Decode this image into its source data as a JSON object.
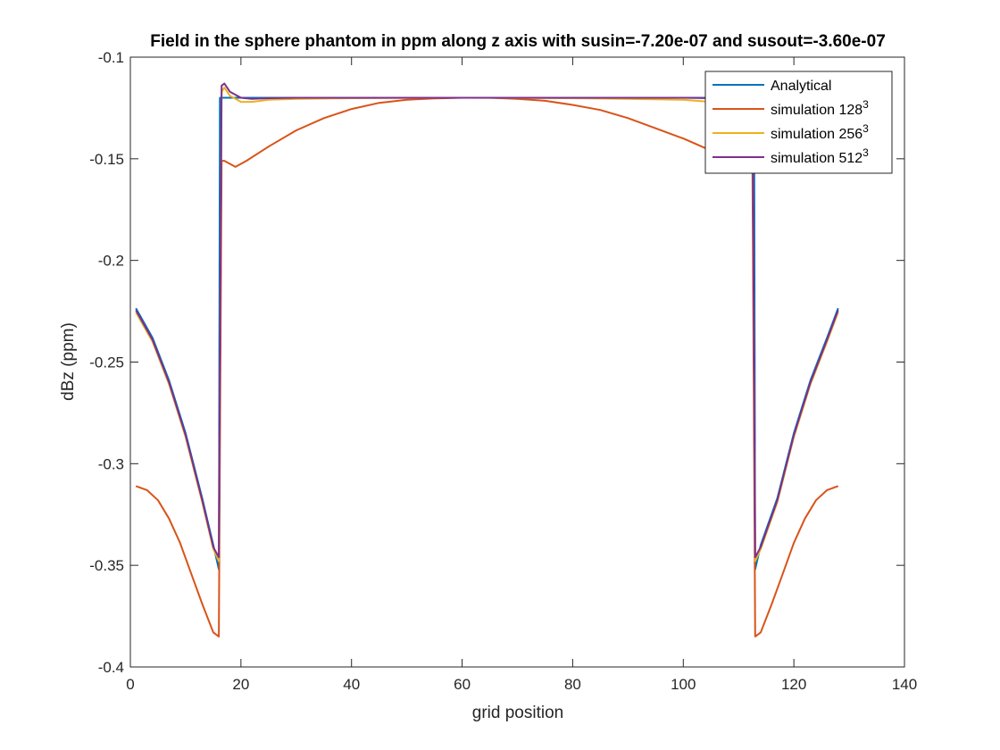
{
  "chart_data": {
    "type": "line",
    "title": "Field in the sphere phantom in ppm along z axis with susin=-7.20e-07 and susout=-3.60e-07",
    "xlabel": "grid position",
    "ylabel": "dBz (ppm)",
    "xlim": [
      0,
      140
    ],
    "ylim": [
      -0.4,
      -0.1
    ],
    "xticks": [
      0,
      20,
      40,
      60,
      80,
      100,
      120,
      140
    ],
    "xtick_labels": [
      "0",
      "20",
      "40",
      "60",
      "80",
      "100",
      "120",
      "140"
    ],
    "yticks": [
      -0.4,
      -0.35,
      -0.3,
      -0.25,
      -0.2,
      -0.15,
      -0.1
    ],
    "ytick_labels": [
      "-0.4",
      "-0.35",
      "-0.3",
      "-0.25",
      "-0.2",
      "-0.15",
      "-0.1"
    ],
    "grid": false,
    "legend_position": "top-right",
    "series": [
      {
        "name": "Analytical",
        "legend_base": "Analytical",
        "legend_sup": "",
        "color": "#0072BD",
        "x": [
          1,
          4,
          7,
          10,
          13,
          15,
          16,
          16.2,
          17,
          20,
          30,
          40,
          50,
          60,
          64.5,
          70,
          80,
          90,
          100,
          110,
          112,
          112.8,
          113,
          114,
          117,
          120,
          123,
          126,
          128
        ],
        "y": [
          -0.2235,
          -0.238,
          -0.259,
          -0.285,
          -0.317,
          -0.34,
          -0.352,
          -0.12,
          -0.12,
          -0.12,
          -0.12,
          -0.12,
          -0.12,
          -0.12,
          -0.12,
          -0.12,
          -0.12,
          -0.12,
          -0.12,
          -0.12,
          -0.12,
          -0.12,
          -0.352,
          -0.34,
          -0.317,
          -0.285,
          -0.259,
          -0.238,
          -0.2235
        ]
      },
      {
        "name": "simulation 128^3",
        "legend_base": "simulation 128",
        "legend_sup": "3",
        "color": "#D95319",
        "x": [
          1,
          3,
          5,
          7,
          9,
          11,
          13,
          15,
          16,
          16.5,
          17,
          19,
          21,
          25,
          30,
          35,
          40,
          45,
          50,
          55,
          60,
          65,
          70,
          75,
          80,
          85,
          90,
          95,
          100,
          105,
          110,
          111.5,
          112.5,
          113,
          114,
          116,
          118,
          120,
          122,
          124,
          126,
          128
        ],
        "y": [
          -0.311,
          -0.313,
          -0.318,
          -0.327,
          -0.339,
          -0.354,
          -0.369,
          -0.383,
          -0.385,
          -0.151,
          -0.151,
          -0.154,
          -0.151,
          -0.144,
          -0.136,
          -0.13,
          -0.1255,
          -0.1225,
          -0.121,
          -0.1203,
          -0.12,
          -0.12,
          -0.1205,
          -0.1215,
          -0.1235,
          -0.126,
          -0.13,
          -0.135,
          -0.14,
          -0.146,
          -0.153,
          -0.154,
          -0.151,
          -0.385,
          -0.383,
          -0.369,
          -0.354,
          -0.339,
          -0.327,
          -0.318,
          -0.313,
          -0.311
        ]
      },
      {
        "name": "simulation 256^3",
        "legend_base": "simulation 256",
        "legend_sup": "3",
        "color": "#EDB120",
        "x": [
          1,
          4,
          7,
          10,
          13,
          15,
          16,
          16.5,
          17,
          18,
          20,
          22,
          25,
          30,
          40,
          60,
          80,
          90,
          100,
          105,
          108,
          110,
          111.5,
          112.5,
          113,
          114,
          117,
          120,
          123,
          126,
          128
        ],
        "y": [
          -0.2255,
          -0.24,
          -0.261,
          -0.287,
          -0.319,
          -0.342,
          -0.348,
          -0.117,
          -0.115,
          -0.119,
          -0.122,
          -0.122,
          -0.121,
          -0.1205,
          -0.1202,
          -0.12,
          -0.1202,
          -0.1205,
          -0.121,
          -0.122,
          -0.122,
          -0.119,
          -0.115,
          -0.117,
          -0.348,
          -0.342,
          -0.319,
          -0.287,
          -0.261,
          -0.24,
          -0.2255
        ]
      },
      {
        "name": "simulation 512^3",
        "legend_base": "simulation 512",
        "legend_sup": "3",
        "color": "#7E2F8E",
        "x": [
          1,
          4,
          7,
          10,
          13,
          15,
          16,
          16.5,
          17,
          18,
          20,
          22,
          25,
          30,
          40,
          60,
          80,
          90,
          100,
          105,
          108,
          110,
          111.5,
          112.5,
          113,
          114,
          117,
          120,
          123,
          126,
          128
        ],
        "y": [
          -0.2245,
          -0.239,
          -0.26,
          -0.286,
          -0.318,
          -0.341,
          -0.346,
          -0.114,
          -0.113,
          -0.117,
          -0.12,
          -0.1205,
          -0.1202,
          -0.12,
          -0.12,
          -0.12,
          -0.12,
          -0.12,
          -0.12,
          -0.1202,
          -0.1205,
          -0.117,
          -0.113,
          -0.114,
          -0.346,
          -0.341,
          -0.318,
          -0.286,
          -0.26,
          -0.239,
          -0.2245
        ]
      }
    ]
  }
}
